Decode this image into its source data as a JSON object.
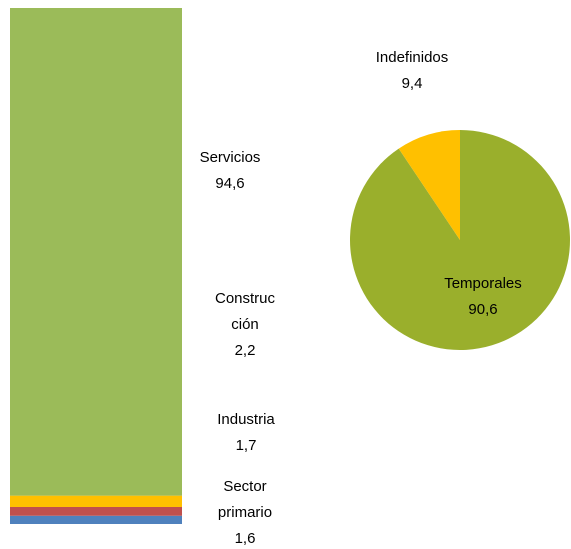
{
  "chart_data": [
    {
      "type": "stacked_column",
      "categories": [
        "Sector primario",
        "Industria",
        "Construcción",
        "Servicios"
      ],
      "values": [
        1.6,
        1.7,
        2.2,
        94.6
      ],
      "value_labels": [
        "1,6",
        "1,7",
        "2,2",
        "94,6"
      ],
      "colors": [
        "#4f81bd",
        "#c0504d",
        "#ffc000",
        "#9bbb59"
      ]
    },
    {
      "type": "pie",
      "categories": [
        "Temporales",
        "Indefinidos"
      ],
      "values": [
        90.6,
        9.4
      ],
      "value_labels": [
        "90,6",
        "9,4"
      ],
      "colors": [
        "#9aaf2c",
        "#ffc000"
      ]
    }
  ]
}
